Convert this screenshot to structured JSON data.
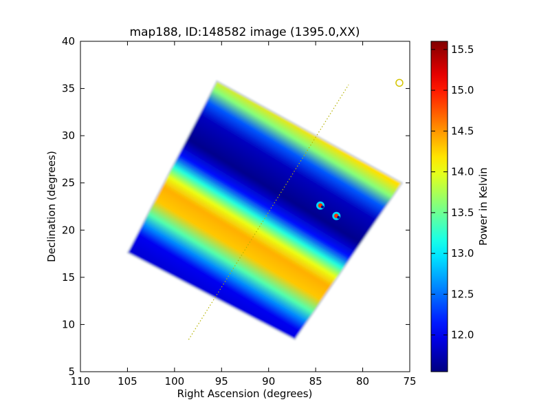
{
  "chart_data": {
    "type": "heatmap",
    "title": "map188, ID:148582 image (1395.0,XX)",
    "xlabel": "Right Ascension (degrees)",
    "ylabel": "Declination (degrees)",
    "xlim": [
      110,
      75
    ],
    "ylim": [
      5,
      40
    ],
    "x_ticks": [
      110,
      105,
      100,
      95,
      90,
      85,
      80,
      75
    ],
    "y_ticks": [
      5,
      10,
      15,
      20,
      25,
      30,
      35,
      40
    ],
    "grid": false,
    "colorbar": {
      "label": "Power in Kelvin",
      "colormap": "jet",
      "range": [
        11.55,
        15.6
      ],
      "ticks": [
        12.0,
        12.5,
        13.0,
        13.5,
        14.0,
        14.5,
        15.0,
        15.5
      ]
    },
    "map_corners": [
      {
        "ra": 95.5,
        "dec": 35.8
      },
      {
        "ra": 75.8,
        "dec": 25.0
      },
      {
        "ra": 87.2,
        "dec": 8.4
      },
      {
        "ra": 105.0,
        "dec": 17.6
      }
    ],
    "bands": [
      {
        "offset": 0.0,
        "value": 14.2
      },
      {
        "offset": 0.07,
        "value": 13.6
      },
      {
        "offset": 0.14,
        "value": 12.4
      },
      {
        "offset": 0.22,
        "value": 11.8
      },
      {
        "offset": 0.36,
        "value": 11.6
      },
      {
        "offset": 0.45,
        "value": 12.1
      },
      {
        "offset": 0.52,
        "value": 13.2
      },
      {
        "offset": 0.58,
        "value": 14.0
      },
      {
        "offset": 0.64,
        "value": 14.4
      },
      {
        "offset": 0.72,
        "value": 14.3
      },
      {
        "offset": 0.8,
        "value": 13.4
      },
      {
        "offset": 0.86,
        "value": 12.6
      },
      {
        "offset": 0.92,
        "value": 12.0
      },
      {
        "offset": 1.0,
        "value": 11.9
      }
    ],
    "sources": [
      {
        "ra": 84.5,
        "dec": 22.6
      },
      {
        "ra": 82.8,
        "dec": 21.5
      }
    ],
    "marker": {
      "ra": 76.1,
      "dec": 35.6,
      "shape": "circle",
      "color": "#d4c400"
    },
    "dotted_line": {
      "from": {
        "ra": 98.5,
        "dec": 8.4
      },
      "to": {
        "ra": 81.5,
        "dec": 35.4
      },
      "color": "#b5b300"
    }
  }
}
